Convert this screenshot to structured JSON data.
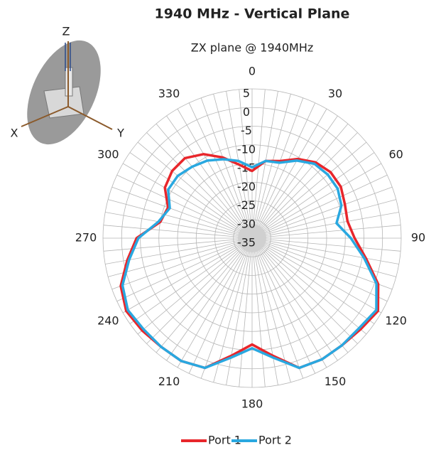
{
  "chart_data": {
    "type": "polar",
    "title": "1940 MHz - Vertical Plane",
    "subtitle": "ZX plane @ 1940MHz",
    "theta": [
      0,
      10,
      20,
      30,
      40,
      50,
      60,
      70,
      80,
      90,
      100,
      110,
      120,
      130,
      140,
      150,
      160,
      170,
      180,
      190,
      200,
      210,
      220,
      230,
      240,
      250,
      260,
      270,
      280,
      290,
      300,
      310,
      320,
      330,
      340,
      350
    ],
    "series": [
      {
        "name": "Port 1",
        "color": "#e8262b",
        "values": [
          -17,
          -14,
          -13,
          -10.5,
          -8.5,
          -7.5,
          -7.5,
          -8.5,
          -9,
          -7.5,
          -4,
          1,
          4,
          3,
          2.5,
          2.5,
          2,
          -3,
          -6.5,
          -3,
          2,
          3,
          3,
          3.5,
          4,
          2.5,
          -1,
          -4,
          -10,
          -11,
          -8,
          -7,
          -7,
          -9,
          -12,
          -15
        ]
      },
      {
        "name": "Port 2",
        "color": "#29a8e0",
        "values": [
          -16,
          -14,
          -13.5,
          -11,
          -9,
          -8.5,
          -8.5,
          -9.5,
          -12,
          -8.5,
          -4.5,
          0.5,
          3.5,
          2.5,
          2.5,
          2.5,
          2,
          -2.5,
          -5.5,
          -2.5,
          2,
          3,
          3,
          3,
          3.5,
          2,
          -1.5,
          -4.5,
          -9.5,
          -11.5,
          -9,
          -9,
          -10,
          -11,
          -12.5,
          -14
        ]
      }
    ],
    "rlim": [
      -35,
      5
    ],
    "rticks": [
      5,
      0,
      -5,
      -10,
      -15,
      -20,
      -25,
      -30,
      -35
    ],
    "thetaticks": [
      0,
      30,
      60,
      90,
      120,
      150,
      180,
      210,
      240,
      270,
      300,
      330
    ],
    "grid": true,
    "legend": "bottom"
  },
  "inset": {
    "z_label": "Z",
    "x_label": "X",
    "y_label": "Y"
  }
}
